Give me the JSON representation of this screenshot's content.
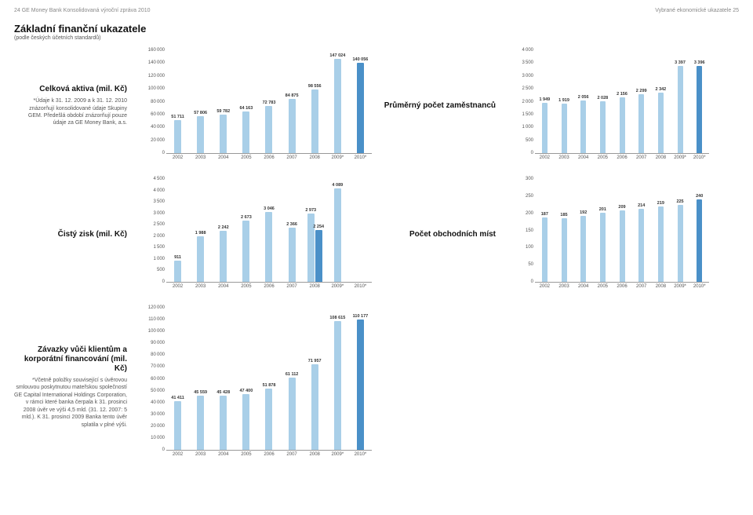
{
  "header": {
    "left": "24   GE Money Bank   Konsolidovaná výroční zpráva 2010",
    "right": "Vybrané ekonomické ukazatele   25"
  },
  "title": {
    "main": "Základní finanční ukazatele",
    "sub": "(podle českých účetních standardů)"
  },
  "colors": {
    "light": "#a9cfe8",
    "dark": "#4a90c8"
  },
  "charts": {
    "assets": {
      "name": "chart-celkova-aktiva",
      "label_big": "Celková aktiva\n(mil. Kč)",
      "label_sm": "*Údaje k 31. 12. 2009 a k 31. 12. 2010 znázorňují konsolidované údaje Skupiny GEM. Předešlá období znázorňují pouze údaje za GE Money Bank, a.s.",
      "ymax": 160000,
      "yticks": [
        0,
        20000,
        40000,
        60000,
        80000,
        100000,
        120000,
        140000,
        160000
      ],
      "cats": [
        "2002",
        "2003",
        "2004",
        "2005",
        "2006",
        "2007",
        "2008",
        "2009*",
        "2010*"
      ],
      "series": [
        {
          "color": "light",
          "vals": [
            51711,
            57806,
            59782,
            64163,
            72783,
            84875,
            98556,
            147024,
            null
          ]
        },
        {
          "color": "dark",
          "vals": [
            null,
            null,
            null,
            null,
            null,
            null,
            null,
            null,
            140056
          ]
        }
      ],
      "pairs": [
        [
          51711,
          null
        ],
        [
          57806,
          null
        ],
        [
          59782,
          null
        ],
        [
          64163,
          null
        ],
        [
          72783,
          null
        ],
        [
          84875,
          null
        ],
        [
          98556,
          null
        ],
        [
          147024,
          null
        ],
        [
          null,
          140056
        ]
      ],
      "labels": [
        [
          "51 711",
          ""
        ],
        [
          "57 806",
          ""
        ],
        [
          "59 782",
          ""
        ],
        [
          "64 163",
          ""
        ],
        [
          "72 783",
          ""
        ],
        [
          "84 875",
          ""
        ],
        [
          "98 556",
          ""
        ],
        [
          "147 024",
          ""
        ],
        [
          "",
          "140 056"
        ]
      ]
    },
    "employees": {
      "name": "chart-zamestnanci",
      "label_big": "Průměrný počet zaměstnanců",
      "ymax": 4000,
      "yticks": [
        0,
        500,
        1000,
        1500,
        2000,
        2500,
        3000,
        3500,
        4000
      ],
      "cats": [
        "2002",
        "2003",
        "2004",
        "2005",
        "2006",
        "2007",
        "2008",
        "2009*",
        "2010*"
      ],
      "pairs": [
        [
          1949,
          null
        ],
        [
          1919,
          null
        ],
        [
          2056,
          null
        ],
        [
          2028,
          null
        ],
        [
          2156,
          null
        ],
        [
          2299,
          null
        ],
        [
          2342,
          null
        ],
        [
          3397,
          null
        ],
        [
          null,
          3396
        ]
      ],
      "labels": [
        [
          "1 949",
          ""
        ],
        [
          "1 919",
          ""
        ],
        [
          "2 056",
          ""
        ],
        [
          "2 028",
          ""
        ],
        [
          "2 156",
          ""
        ],
        [
          "2 299",
          ""
        ],
        [
          "2 342",
          ""
        ],
        [
          "3 397",
          ""
        ],
        [
          "",
          "3 396"
        ]
      ]
    },
    "profit": {
      "name": "chart-cisty-zisk",
      "label_big": "Čistý zisk\n(mil. Kč)",
      "ymax": 4500,
      "yticks": [
        0,
        500,
        1000,
        1500,
        2000,
        2500,
        3000,
        3500,
        4000,
        4500
      ],
      "cats": [
        "2002",
        "2003",
        "2004",
        "2005",
        "2006",
        "2007",
        "2008",
        "2009*",
        "2010*"
      ],
      "pairs": [
        [
          911,
          null
        ],
        [
          1988,
          null
        ],
        [
          2242,
          null
        ],
        [
          2673,
          null
        ],
        [
          3046,
          null
        ],
        [
          2366,
          null
        ],
        [
          2973,
          2254
        ],
        [
          4089,
          null
        ],
        [
          null,
          null
        ]
      ],
      "labels": [
        [
          "911",
          ""
        ],
        [
          "1 988",
          ""
        ],
        [
          "2 242",
          ""
        ],
        [
          "2 673",
          ""
        ],
        [
          "3 046",
          ""
        ],
        [
          "2 366",
          ""
        ],
        [
          "2 973",
          "2 254"
        ],
        [
          "4 089",
          ""
        ],
        [
          "",
          ""
        ]
      ],
      "special": {
        "index": 6,
        "dark": 2254
      }
    },
    "branches": {
      "name": "chart-pocet-mist",
      "label_big": "Počet obchodních míst",
      "ymax": 300,
      "yticks": [
        0,
        50,
        100,
        150,
        200,
        250,
        300
      ],
      "cats": [
        "2002",
        "2003",
        "2004",
        "2005",
        "2006",
        "2007",
        "2008",
        "2009*",
        "2010*"
      ],
      "pairs": [
        [
          187,
          null
        ],
        [
          185,
          null
        ],
        [
          192,
          null
        ],
        [
          201,
          null
        ],
        [
          209,
          null
        ],
        [
          214,
          null
        ],
        [
          219,
          null
        ],
        [
          225,
          null
        ],
        [
          null,
          240
        ]
      ],
      "labels": [
        [
          "187",
          ""
        ],
        [
          "185",
          ""
        ],
        [
          "192",
          ""
        ],
        [
          "201",
          ""
        ],
        [
          "209",
          ""
        ],
        [
          "214",
          ""
        ],
        [
          "219",
          ""
        ],
        [
          "225",
          ""
        ],
        [
          "",
          "240"
        ]
      ]
    },
    "liabilities": {
      "name": "chart-zavazky",
      "label_big": "Závazky vůči klientům a korporátní financování\n(mil. Kč)",
      "label_sm": "*Včetně položky související s úvěrovou smlouvou poskytnutou mateřskou společností GE Capital International Holdings Corporation, v rámci které banka čerpala k 31. prosinci 2008 úvěr ve výši 4,5 mld. (31. 12. 2007: 5 mld.). K 31. prosinci 2009 Banka tento úvěr splatila v plné výši.",
      "ymax": 120000,
      "yticks": [
        0,
        10000,
        20000,
        30000,
        40000,
        50000,
        60000,
        70000,
        80000,
        90000,
        100000,
        110000,
        120000
      ],
      "cats": [
        "2002",
        "2003",
        "2004",
        "2005",
        "2006",
        "2007",
        "2008",
        "2009*",
        "2010*"
      ],
      "pairs": [
        [
          41411,
          null
        ],
        [
          45559,
          null
        ],
        [
          45428,
          null
        ],
        [
          47400,
          null
        ],
        [
          51878,
          null
        ],
        [
          61112,
          null
        ],
        [
          71957,
          null
        ],
        [
          108615,
          null
        ],
        [
          null,
          110177
        ]
      ],
      "labels": [
        [
          "41 411",
          ""
        ],
        [
          "45 559",
          ""
        ],
        [
          "45 428",
          ""
        ],
        [
          "47 400",
          ""
        ],
        [
          "51 878",
          ""
        ],
        [
          "61 112",
          ""
        ],
        [
          "71 957",
          ""
        ],
        [
          "108 615",
          ""
        ],
        [
          "",
          "110 177"
        ]
      ]
    }
  }
}
